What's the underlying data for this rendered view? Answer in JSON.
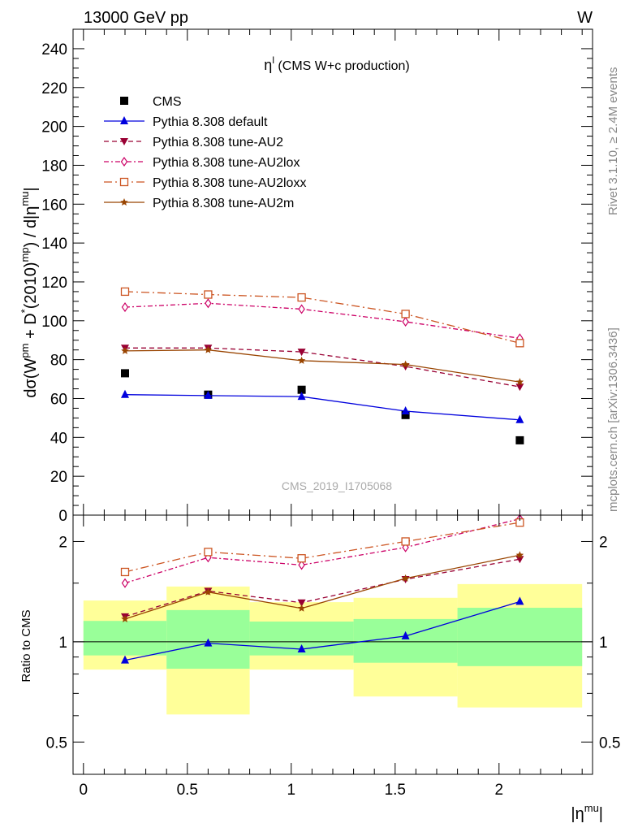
{
  "header": {
    "left": "13000 GeV pp",
    "right": "W"
  },
  "side_labels": {
    "rivet": "Rivet 3.1.10, ≥ 2.4M events",
    "mcplots": "mcplots.cern.ch [arXiv:1306.3436]"
  },
  "watermark": "CMS_2019_I1705068",
  "plot_title": {
    "eta": "η",
    "sup": "l",
    "rest": " (CMS W+c production)"
  },
  "main_ylabel": {
    "p1": "dσ(W",
    "p1sup": "pm",
    "p2": " + D",
    "p2sup": "*",
    "p3": "(2010)",
    "p3sup": "mp",
    "p4": ") / d|η",
    "p4sup": "mu",
    "p5": "|"
  },
  "ratio_ylabel": "Ratio to CMS",
  "xlabel": {
    "main": "|η",
    "sup": "mu",
    "end": "|"
  },
  "chart_data": [
    {
      "type": "line",
      "panel": "main",
      "xlim": [
        -0.05,
        2.45
      ],
      "ylim": [
        0,
        250
      ],
      "x_ticks": [
        0,
        0.5,
        1,
        1.5,
        2
      ],
      "y_ticks": [
        0,
        20,
        40,
        60,
        80,
        100,
        120,
        140,
        160,
        180,
        200,
        220,
        240
      ],
      "y_tick_labels": [
        "0",
        "20",
        "40",
        "60",
        "80",
        "100",
        "120",
        "140",
        "160",
        "180",
        "200",
        "220",
        "240"
      ],
      "x": [
        0.2,
        0.6,
        1.05,
        1.55,
        2.1
      ],
      "series": [
        {
          "name": "CMS",
          "values": [
            73,
            62,
            64.5,
            51.5,
            38.5
          ],
          "color": "#000000",
          "marker": "square",
          "line": "none"
        },
        {
          "name": "Pythia 8.308 default",
          "values": [
            62,
            61.5,
            61,
            53.5,
            49
          ],
          "color": "#0000dd",
          "marker": "triangle-up",
          "line": "solid"
        },
        {
          "name": "Pythia 8.308 tune-AU2",
          "values": [
            86,
            86,
            84,
            76.5,
            66
          ],
          "color": "#990033",
          "marker": "triangle-down",
          "line": "dashed"
        },
        {
          "name": "Pythia 8.308 tune-AU2lox",
          "values": [
            107,
            109,
            106,
            99.5,
            91
          ],
          "color": "#cc0066",
          "marker": "diamond-open",
          "line": "dashdot"
        },
        {
          "name": "Pythia 8.308 tune-AU2loxx",
          "values": [
            115,
            113.5,
            112,
            103.5,
            88.5
          ],
          "color": "#cc5522",
          "marker": "square-open",
          "line": "longdashdot"
        },
        {
          "name": "Pythia 8.308 tune-AU2m",
          "values": [
            84.5,
            85,
            79.5,
            77.5,
            68.5
          ],
          "color": "#994400",
          "marker": "star",
          "line": "solid"
        }
      ]
    },
    {
      "type": "line",
      "panel": "ratio",
      "ylabel": "Ratio to CMS",
      "xlim": [
        -0.05,
        2.45
      ],
      "ylim": [
        0.4,
        2.4
      ],
      "y_scale": "log",
      "y_ticks": [
        0.5,
        1,
        2
      ],
      "y_tick_labels": [
        "0.5",
        "1",
        "2"
      ],
      "x_ticks": [
        0,
        0.5,
        1,
        1.5,
        2
      ],
      "x_tick_labels": [
        "0",
        "0.5",
        "1",
        "1.5",
        "2"
      ],
      "x": [
        0.2,
        0.6,
        1.05,
        1.55,
        2.1
      ],
      "bands": [
        {
          "x_lo": 0.0,
          "x_hi": 0.4,
          "yellow": [
            0.825,
            1.33
          ],
          "green": [
            0.91,
            1.155
          ]
        },
        {
          "x_lo": 0.4,
          "x_hi": 0.8,
          "yellow": [
            0.605,
            1.465
          ],
          "green": [
            0.83,
            1.245
          ]
        },
        {
          "x_lo": 0.8,
          "x_hi": 1.3,
          "yellow": [
            0.825,
            1.315
          ],
          "green": [
            0.91,
            1.15
          ]
        },
        {
          "x_lo": 1.3,
          "x_hi": 1.8,
          "yellow": [
            0.685,
            1.355
          ],
          "green": [
            0.865,
            1.17
          ]
        },
        {
          "x_lo": 1.8,
          "x_hi": 2.4,
          "yellow": [
            0.635,
            1.49
          ],
          "green": [
            0.845,
            1.265
          ]
        }
      ],
      "series": [
        {
          "name": "Pythia 8.308 default",
          "values": [
            0.88,
            0.99,
            0.95,
            1.04,
            1.32
          ],
          "color": "#0000dd",
          "marker": "triangle-up",
          "line": "solid"
        },
        {
          "name": "Pythia 8.308 tune-AU2",
          "values": [
            1.19,
            1.42,
            1.31,
            1.54,
            1.77
          ],
          "color": "#990033",
          "marker": "triangle-down",
          "line": "dashed"
        },
        {
          "name": "Pythia 8.308 tune-AU2lox",
          "values": [
            1.5,
            1.79,
            1.7,
            1.92,
            2.34
          ],
          "color": "#cc0066",
          "marker": "diamond-open",
          "line": "dashdot"
        },
        {
          "name": "Pythia 8.308 tune-AU2loxx",
          "values": [
            1.62,
            1.86,
            1.78,
            2.0,
            2.28
          ],
          "color": "#cc5522",
          "marker": "square-open",
          "line": "longdashdot"
        },
        {
          "name": "Pythia 8.308 tune-AU2m",
          "values": [
            1.17,
            1.41,
            1.26,
            1.55,
            1.82
          ],
          "color": "#994400",
          "marker": "star",
          "line": "solid"
        }
      ]
    }
  ]
}
